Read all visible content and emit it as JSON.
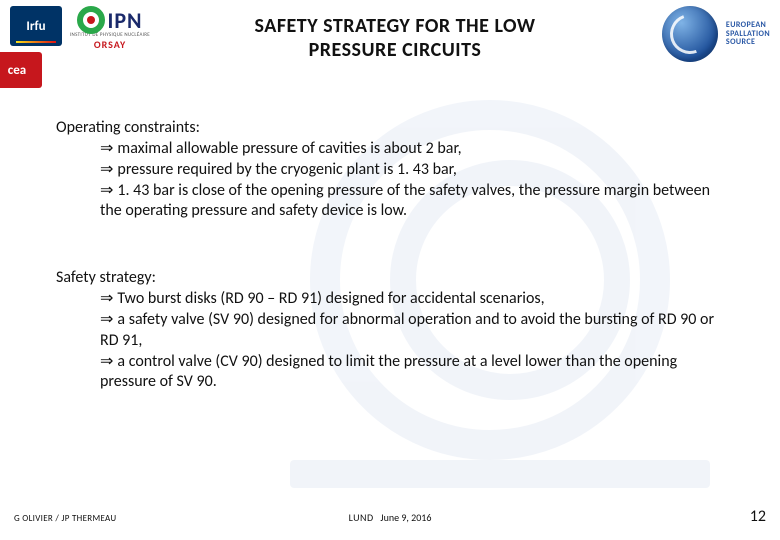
{
  "colors": {
    "text": "#111111",
    "ess_blue": "#2a58a5",
    "cea_red": "#c6171d",
    "irfu_navy": "#003366",
    "ipn_green": "#2aa84a",
    "ipn_navy": "#1b2a6b",
    "background": "#ffffff"
  },
  "header": {
    "irfu_label": "Irfu",
    "cea_label": "cea",
    "ipn_label": "IPN",
    "ipn_sub1": "INSTITUT DE PHYSIQUE NUCLÉAIRE",
    "ipn_sub2": "ORSAY",
    "ess_line1": "EUROPEAN",
    "ess_line2": "SPALLATION",
    "ess_line3": "SOURCE"
  },
  "title": {
    "line1": "SAFETY STRATEGY FOR THE LOW",
    "line2": "PRESSURE CIRCUITS"
  },
  "block1": {
    "heading": "Operating constraints:",
    "items": [
      "maximal allowable pressure of cavities is about 2 bar,",
      "pressure required by the cryogenic plant is 1. 43 bar,",
      "1. 43 bar is close of the opening pressure of the safety valves, the pressure margin between the operating pressure and safety device is low."
    ]
  },
  "block2": {
    "heading": "Safety strategy:",
    "items": [
      "Two burst disks (RD 90 – RD 91) designed for accidental scenarios,",
      "a safety valve (SV 90) designed for abnormal operation and to avoid the bursting of RD 90 or RD 91,",
      "a control valve (CV 90) designed to limit the pressure at a level lower than the opening pressure of SV 90."
    ]
  },
  "footer": {
    "authors": "G OLIVIER / JP THERMEAU",
    "place": "LUND",
    "date": "June 9, 2016",
    "page": "12"
  },
  "typography": {
    "title_fontsize_pt": 20,
    "body_fontsize_pt": 16,
    "footer_fontsize_pt": 9,
    "page_number_fontsize_pt": 16,
    "font_family": "Calibri"
  }
}
